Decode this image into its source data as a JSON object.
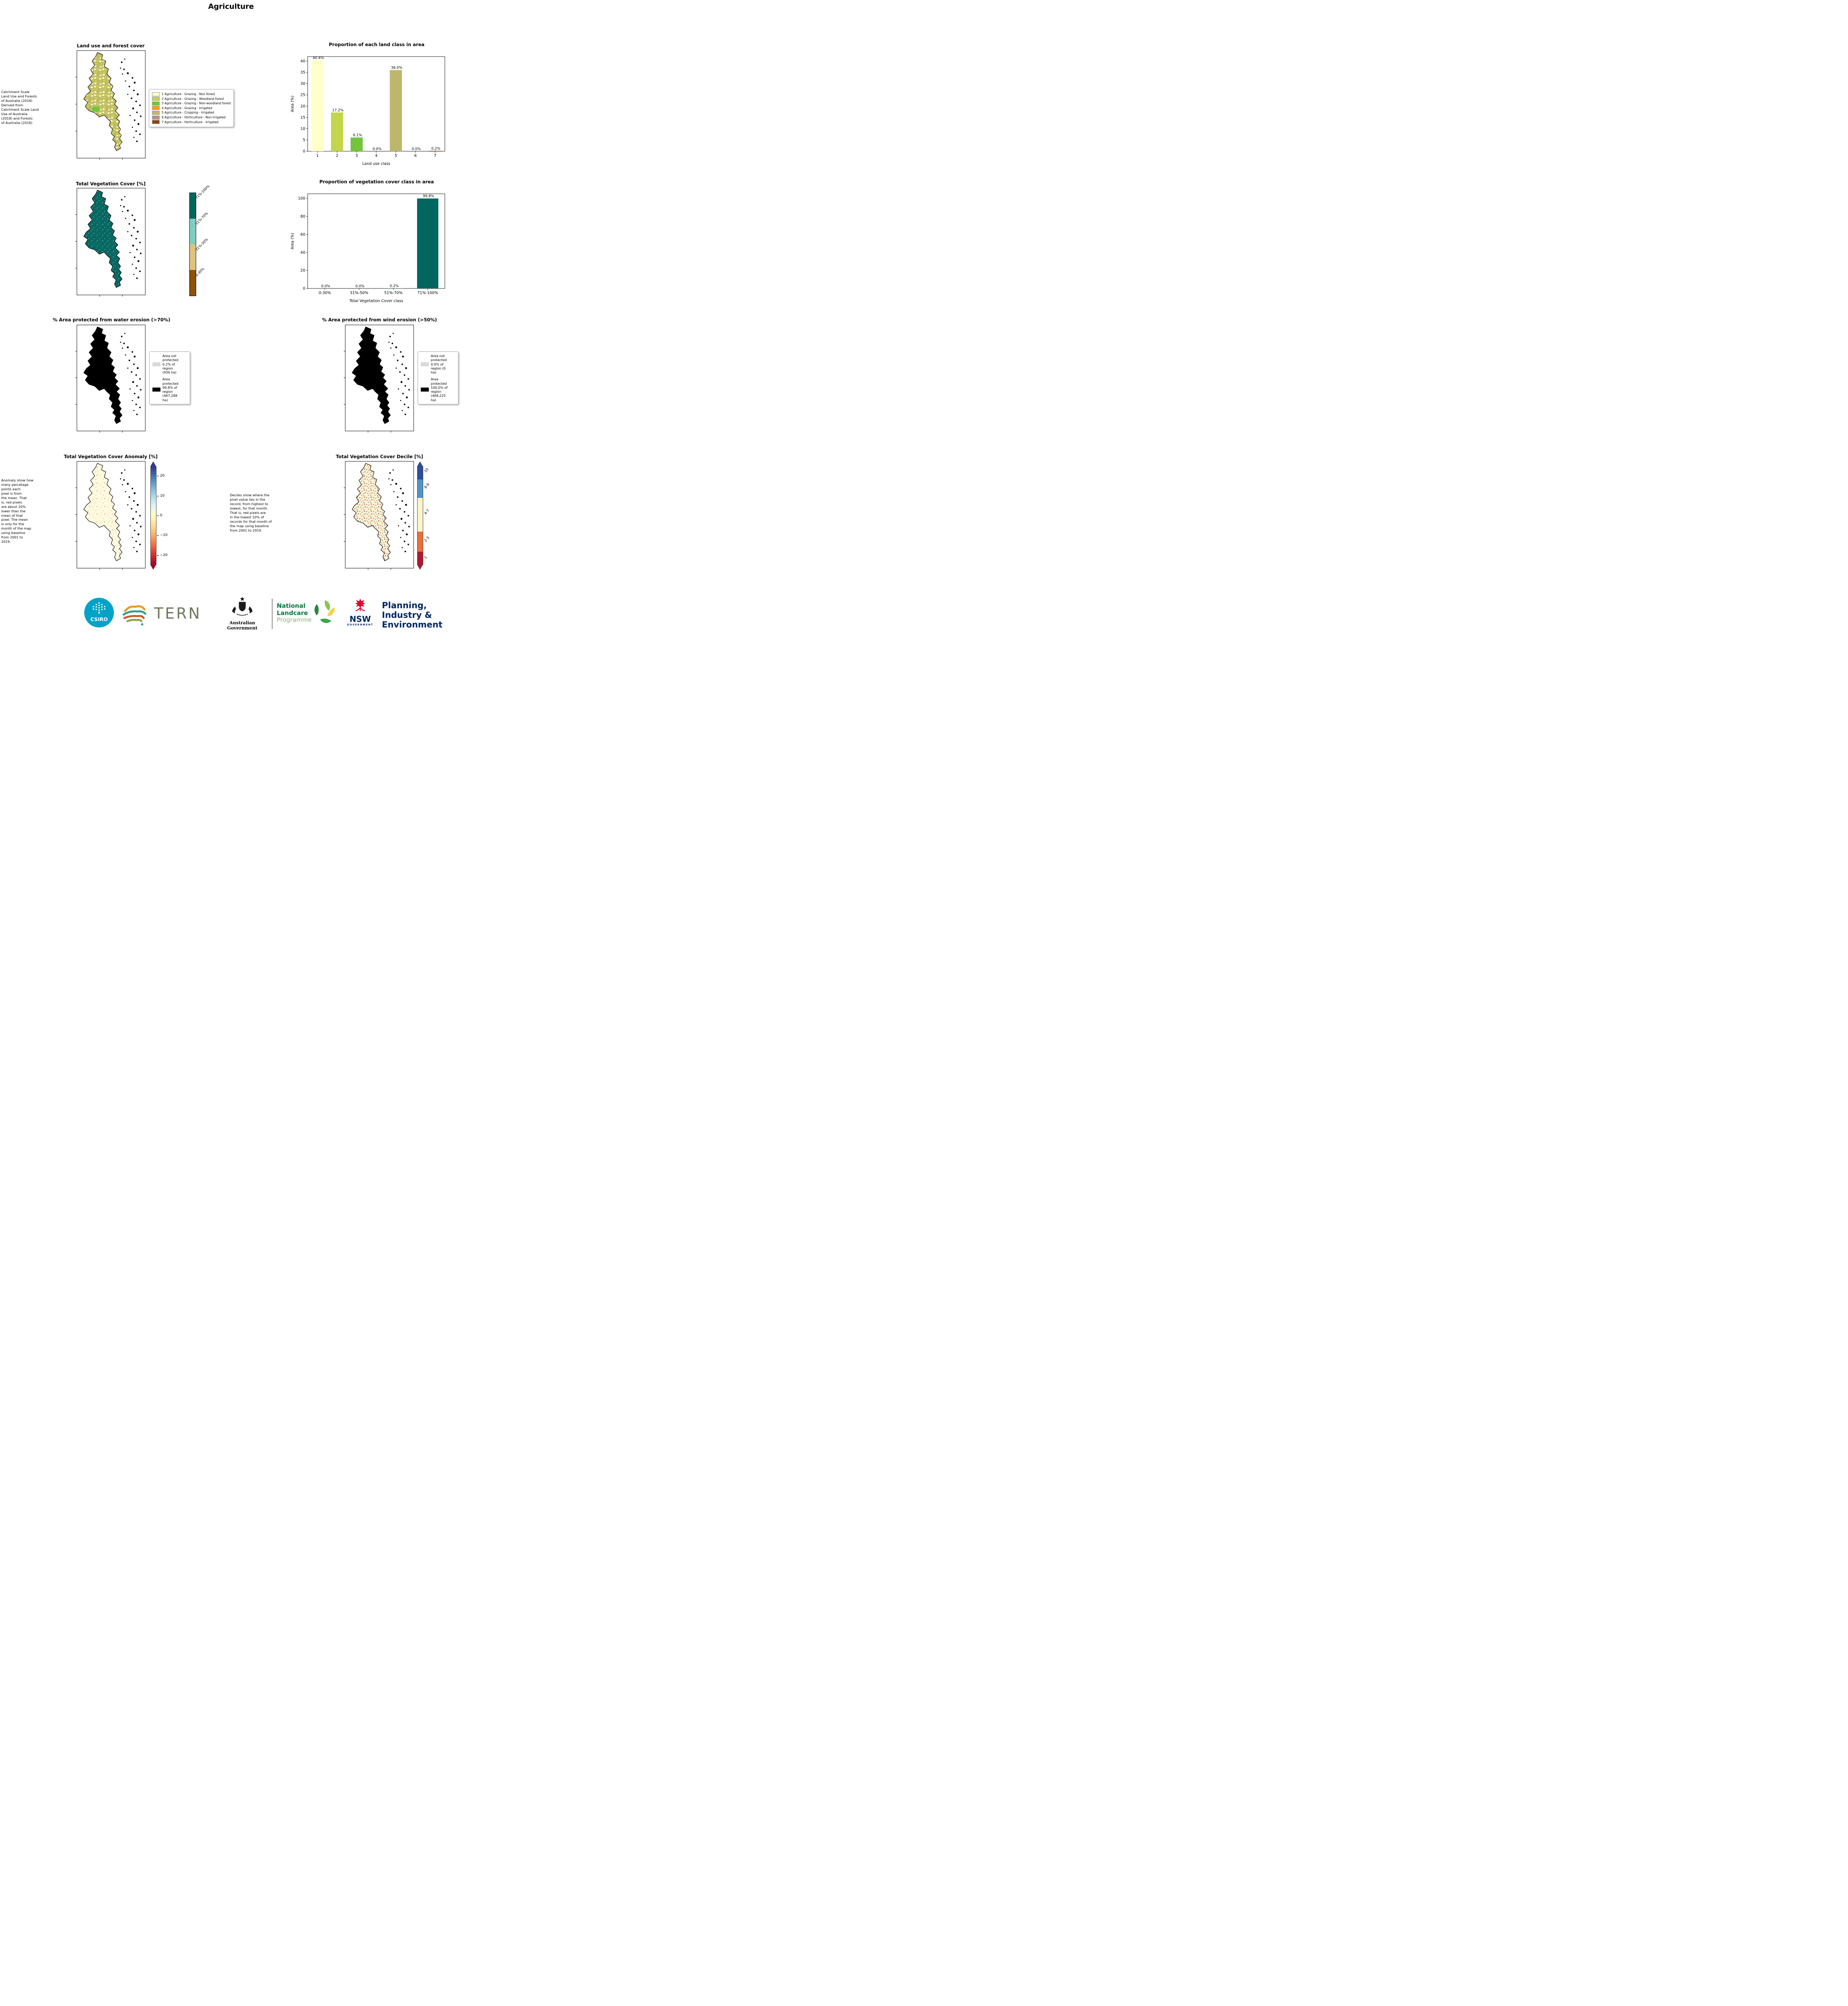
{
  "page_title": "Agriculture",
  "row1": {
    "map_title": "Land use and forest cover",
    "side_note": " Catchment Scale\nLand Use and Forests\nof Australia (2018)\nDerived from\nCatchment Scale Land\nUse of Australia\n(2018) and Forests\nof Australia (2018)",
    "legend_items": [
      {
        "label": "1 Agriculture - Grazing - Non forest",
        "color": "#ffffcc"
      },
      {
        "label": "2 Agriculture - Grazing - Woodland forest",
        "color": "#c3d54a"
      },
      {
        "label": "3 Agriculture - Grazing - Non-woodland forest",
        "color": "#74c43e"
      },
      {
        "label": "4 Agriculture - Grazing - Irrigated",
        "color": "#ff9e00"
      },
      {
        "label": "5 Agriculture - Cropping - Irrigated",
        "color": "#bdb76b"
      },
      {
        "label": "6 Agriculture - Horticulture - Non-irrigated",
        "color": "#bc8f8f"
      },
      {
        "label": "7 Agriculture - Horticulture - Irrigated",
        "color": "#8b4513"
      }
    ]
  },
  "row2": {
    "map_title": "Total Vegetation Cover [%]",
    "colorbar": {
      "labels": [
        "71%-100%",
        "51%-70%",
        "31%-50%",
        "0-30%"
      ],
      "colors": [
        "#01665e",
        "#80cdc1",
        "#dfc27d",
        "#8c510a"
      ]
    }
  },
  "row3": {
    "water": {
      "title": "% Area protected from water erosion (>70%)",
      "legend": [
        {
          "color": "#d9d9d9",
          "text": "Area not\nprotected\n0.2% of\nregion\n(936 ha)"
        },
        {
          "color": "#000000",
          "text": "Area\nprotected\n99.8% of\nregion\n(467,288\nha)"
        }
      ]
    },
    "wind": {
      "title": "% Area protected from wind erosion (>50%)",
      "legend": [
        {
          "color": "#d9d9d9",
          "text": "Area not\nprotected\n0.0% of\nregion (0\nha)"
        },
        {
          "color": "#000000",
          "text": "Area\nprotected\n100.0% of\nregion\n(468,225\nha)"
        }
      ]
    }
  },
  "row4": {
    "anomaly": {
      "title": "Total Vegetation Cover Anomaly [%]",
      "note": "Anomaly show how\nmany percetage\npoints each\npixel is from\nthe mean. That\nis, red pixels\nare about 20%\nlower than the\nmean of that\npixel. The mean\nis only for the\nmonth of the map\nusing baseline\nfrom 2001 to\n2019.",
      "ticks": [
        "20",
        "10",
        "0",
        "−10",
        "−20"
      ],
      "colors": [
        "#313695",
        "#4575b4",
        "#74add1",
        "#abd9e9",
        "#e0f3f8",
        "#ffffbf",
        "#fee090",
        "#fdae61",
        "#f46d43",
        "#d73027",
        "#a50026"
      ]
    },
    "decile": {
      "title": "Total Vegetation Cover Decile [%]",
      "note": "Deciles show where the\npixel value lies in the\nrecord, from highest to\nlowest, for that month.\nThat is, red pixels are\nin the lowest 10% of\nrecords for that month of\nthe map using baseline\nfrom 2001 to 2019.",
      "segments": [
        {
          "label": "10",
          "color": "#2c4da0"
        },
        {
          "label": "8-9",
          "color": "#4f93c8"
        },
        {
          "label": "4-7",
          "color": "#fdf5c9"
        },
        {
          "label": "2-3",
          "color": "#e8703a"
        },
        {
          "label": "1",
          "color": "#b2182b"
        }
      ]
    }
  },
  "chart_data": [
    {
      "id": "land_class",
      "type": "bar",
      "title": "Proportion of each land class in area",
      "categories": [
        "1",
        "2",
        "3",
        "4",
        "5",
        "6",
        "7"
      ],
      "values": [
        40.4,
        17.2,
        6.1,
        0.0,
        36.0,
        0.0,
        0.2
      ],
      "value_labels": [
        "40.4%",
        "17.2%",
        "6.1%",
        "0.0%",
        "36.0%",
        "0.0%",
        "0.2%"
      ],
      "bar_colors": [
        "#ffffcc",
        "#c3d54a",
        "#74c43e",
        "#ff9e00",
        "#bdb76b",
        "#bc8f8f",
        "#8b4513"
      ],
      "xlabel": "Land use class",
      "ylabel": "Area (%)",
      "ylim": [
        0,
        42
      ],
      "yticks": [
        0,
        5,
        10,
        15,
        20,
        25,
        30,
        35,
        40
      ],
      "grid": false,
      "legend_position": "none"
    },
    {
      "id": "veg_cover_class",
      "type": "bar",
      "title": "Proportion of vegetation cover class in area",
      "categories": [
        "0-30%",
        "31%-50%",
        "51%-70%",
        "71%-100%"
      ],
      "values": [
        0.0,
        0.0,
        0.2,
        99.8
      ],
      "value_labels": [
        "0.0%",
        "0.0%",
        "0.2%",
        "99.8%"
      ],
      "bar_colors": [
        "#01665e",
        "#01665e",
        "#01665e",
        "#01665e"
      ],
      "xlabel": "Total Vegetation Cover class",
      "ylabel": "Area (%)",
      "ylim": [
        0,
        105
      ],
      "yticks": [
        0,
        20,
        40,
        60,
        80,
        100
      ],
      "grid": false,
      "legend_position": "none"
    }
  ],
  "footer": {
    "csiro_label": "CSIRO",
    "tern_label": "TERN",
    "aus_gov_label": "Australian Government",
    "landcare": {
      "line1": "National",
      "line2": "Landcare",
      "line3": "Programme"
    },
    "nsw": {
      "name": "NSW",
      "sub": "GOVERNMENT"
    },
    "planning": {
      "line1": "Planning,",
      "line2": "Industry &",
      "line3": "Environment"
    }
  }
}
